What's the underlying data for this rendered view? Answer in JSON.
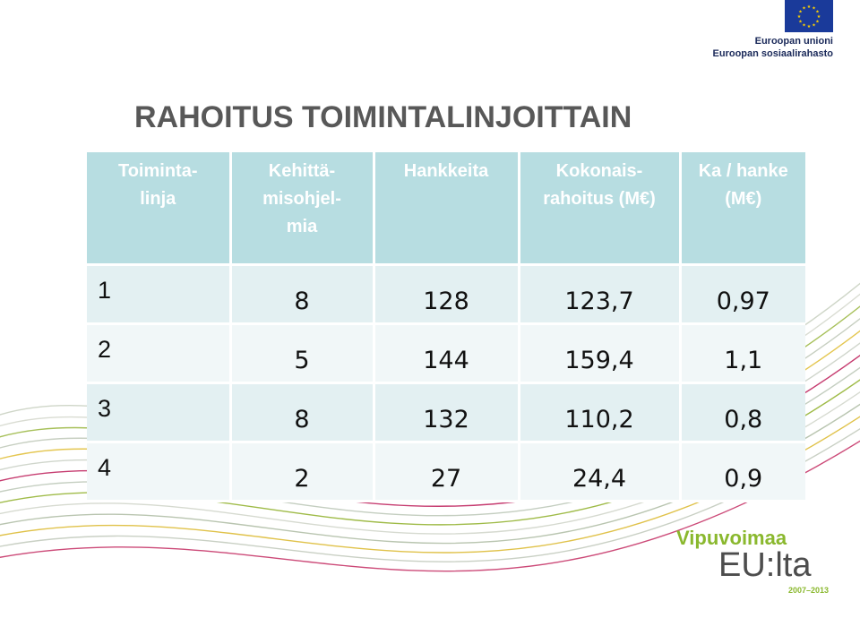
{
  "eu_logo": {
    "line1": "Euroopan unioni",
    "line2": "Euroopan sosiaalirahasto",
    "flag_color": "#1a3a9a",
    "star_color": "#ffd200",
    "flag_icon": "eu-flag-icon"
  },
  "title": "RAHOITUS TOIMINTALINJOITTAIN",
  "table": {
    "headers": [
      [
        "Toiminta-",
        "linja"
      ],
      [
        "Kehittä-",
        "misohjel-",
        "mia"
      ],
      [
        "Hankkeita"
      ],
      [
        "Kokonais-",
        "rahoitus (M€)"
      ],
      [
        "Ka / hanke",
        "(M€)"
      ]
    ],
    "rows": [
      [
        "1",
        "8",
        "128",
        "123,7",
        "0,97"
      ],
      [
        "2",
        "5",
        "144",
        "159,4",
        "1,1"
      ],
      [
        "3",
        "8",
        "132",
        "110,2",
        "0,8"
      ],
      [
        "4",
        "2",
        "27",
        "24,4",
        "0,9"
      ]
    ],
    "header_bg": "#b7dde1",
    "row_bg_odd": "#e3f0f2",
    "row_bg_even": "#f1f7f8"
  },
  "footer_logo": {
    "brand": "Vipuvoimaa",
    "wordmark": "EU:lta",
    "years": "2007–2013",
    "brand_color": "#8ab82e"
  }
}
